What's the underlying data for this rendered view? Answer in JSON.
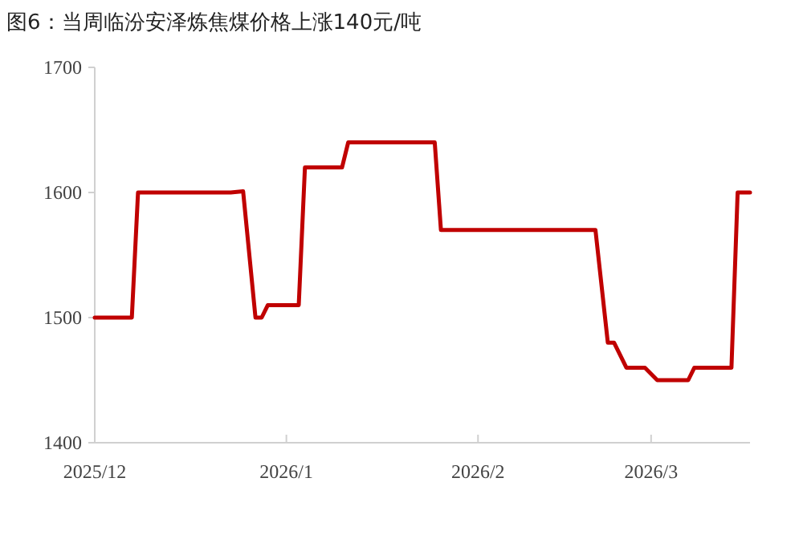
{
  "chart_data": {
    "type": "line",
    "title": "图6：当周临汾安泽炼焦煤价格上涨140元/吨",
    "x": [
      "2025-12-01",
      "2025-12-07",
      "2025-12-08",
      "2025-12-23",
      "2025-12-25",
      "2025-12-27",
      "2025-12-28",
      "2025-12-29",
      "2026-01-03",
      "2026-01-04",
      "2026-01-10",
      "2026-01-11",
      "2026-01-25",
      "2026-01-26",
      "2026-02-20",
      "2026-02-22",
      "2026-02-23",
      "2026-02-25",
      "2026-02-28",
      "2026-03-02",
      "2026-03-07",
      "2026-03-08",
      "2026-03-14",
      "2026-03-15",
      "2026-03-17"
    ],
    "series": [
      {
        "color": "#c00000",
        "values": [
          1500,
          1500,
          1600,
          1600,
          1601,
          1500,
          1500,
          1510,
          1510,
          1620,
          1620,
          1640,
          1640,
          1570,
          1570,
          1480,
          1480,
          1460,
          1460,
          1450,
          1450,
          1460,
          1460,
          1600,
          1600
        ]
      }
    ],
    "xlim": [
      "2025-12-01",
      "2026-03-17"
    ],
    "xticks": [
      {
        "value": "2025-12-01",
        "label": "2025/12"
      },
      {
        "value": "2026-01-01",
        "label": "2026/1"
      },
      {
        "value": "2026-02-01",
        "label": "2026/2"
      },
      {
        "value": "2026-03-01",
        "label": "2026/3"
      }
    ],
    "ylim": [
      1400,
      1700
    ],
    "yticks": [
      1400,
      1500,
      1600,
      1700
    ],
    "grid": false,
    "marker": "none",
    "line_style": "solid"
  }
}
